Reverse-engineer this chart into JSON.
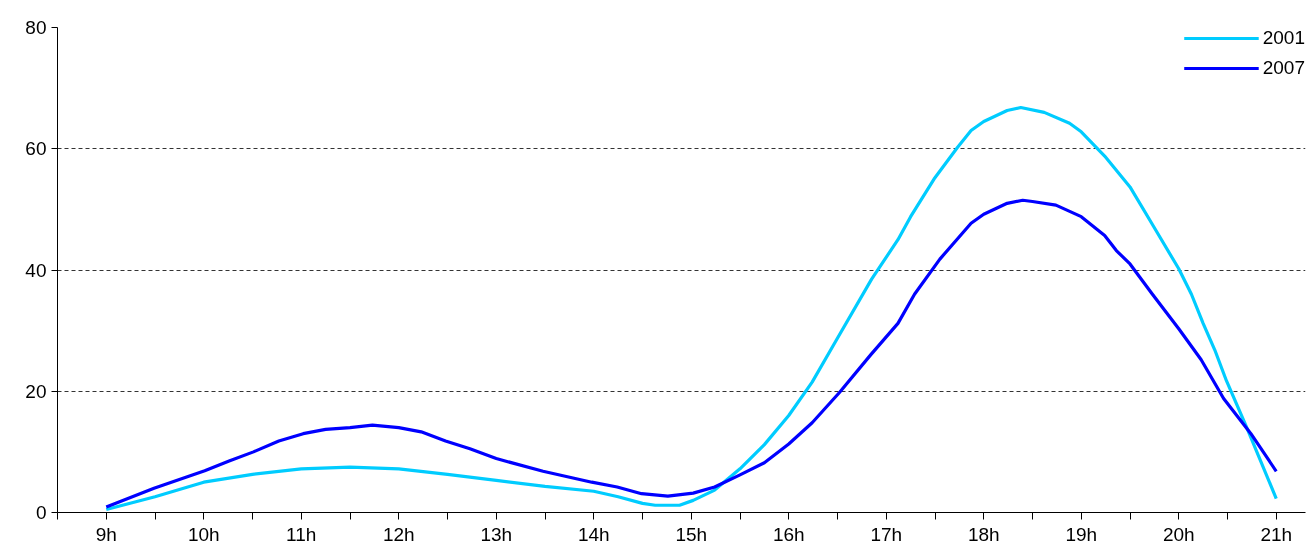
{
  "chart_data": {
    "type": "line",
    "xlim": [
      8.5,
      21.3
    ],
    "ylim": [
      0,
      80
    ],
    "yticks": [
      0,
      20,
      40,
      60,
      80
    ],
    "xticks": [
      {
        "value": 8.5,
        "label": null
      },
      {
        "value": 9,
        "label": "9h"
      },
      {
        "value": 9.5,
        "label": null
      },
      {
        "value": 10,
        "label": "10h"
      },
      {
        "value": 10.5,
        "label": null
      },
      {
        "value": 11,
        "label": "11h"
      },
      {
        "value": 11.5,
        "label": null
      },
      {
        "value": 12,
        "label": "12h"
      },
      {
        "value": 12.5,
        "label": null
      },
      {
        "value": 13,
        "label": "13h"
      },
      {
        "value": 13.5,
        "label": null
      },
      {
        "value": 14,
        "label": "14h"
      },
      {
        "value": 14.5,
        "label": null
      },
      {
        "value": 15,
        "label": "15h"
      },
      {
        "value": 15.5,
        "label": null
      },
      {
        "value": 16,
        "label": "16h"
      },
      {
        "value": 16.5,
        "label": null
      },
      {
        "value": 17,
        "label": "17h"
      },
      {
        "value": 17.5,
        "label": null
      },
      {
        "value": 18,
        "label": "18h"
      },
      {
        "value": 18.5,
        "label": null
      },
      {
        "value": 19,
        "label": "19h"
      },
      {
        "value": 19.5,
        "label": null
      },
      {
        "value": 20,
        "label": "20h"
      },
      {
        "value": 20.5,
        "label": null
      },
      {
        "value": 21,
        "label": "21h"
      }
    ],
    "grid": "y",
    "legend": "top right",
    "line_style": "solid",
    "marker": "none",
    "series": [
      {
        "name": "2001",
        "color": "#00ccff",
        "x": [
          9.0,
          9.5,
          10.0,
          10.5,
          11.0,
          11.5,
          12.0,
          12.5,
          13.0,
          13.5,
          14.0,
          14.25,
          14.5,
          14.63,
          14.88,
          15.02,
          15.24,
          15.5,
          15.75,
          16.0,
          16.24,
          16.48,
          16.85,
          17.12,
          17.25,
          17.49,
          17.73,
          17.87,
          18.0,
          18.24,
          18.38,
          18.62,
          18.88,
          19.0,
          19.24,
          19.5,
          19.73,
          20.0,
          20.13,
          20.25,
          20.37,
          20.49,
          20.69,
          21.0
        ],
        "values": [
          0.5,
          2.6,
          5.0,
          6.3,
          7.2,
          7.5,
          7.2,
          6.3,
          5.3,
          4.3,
          3.5,
          2.6,
          1.5,
          1.2,
          1.2,
          2.0,
          3.7,
          7.2,
          11.2,
          16,
          21.5,
          28.2,
          38.5,
          45,
          48.8,
          55,
          60.2,
          63,
          64.5,
          66.3,
          66.8,
          66,
          64.2,
          62.8,
          58.8,
          53.7,
          47.5,
          40.2,
          36,
          31.2,
          26.8,
          21.7,
          14.3,
          2.3
        ]
      },
      {
        "name": "2007",
        "color": "#0000ff",
        "x": [
          9.0,
          9.49,
          10.01,
          10.26,
          10.51,
          10.77,
          11.02,
          11.25,
          11.5,
          11.73,
          12.0,
          12.23,
          12.48,
          12.73,
          13.0,
          13.48,
          13.98,
          14.24,
          14.49,
          14.76,
          15.02,
          15.24,
          15.5,
          15.75,
          16.0,
          16.24,
          16.52,
          16.84,
          17.12,
          17.29,
          17.55,
          17.87,
          18.0,
          18.24,
          18.4,
          18.5,
          18.74,
          19.0,
          19.24,
          19.36,
          19.5,
          19.73,
          20.0,
          20.23,
          20.46,
          20.74,
          21.0
        ],
        "values": [
          0.9,
          4.0,
          6.9,
          8.5,
          10,
          11.8,
          13,
          13.7,
          14,
          14.4,
          14,
          13.3,
          11.8,
          10.5,
          8.9,
          6.8,
          5,
          4.2,
          3.1,
          2.7,
          3.2,
          4.2,
          6.2,
          8.2,
          11.3,
          14.8,
          19.8,
          26,
          31.2,
          36,
          41.8,
          47.7,
          49.2,
          51,
          51.5,
          51.3,
          50.7,
          48.8,
          45.7,
          43.2,
          41,
          36,
          30.3,
          25.2,
          18.8,
          13,
          6.8
        ]
      }
    ]
  }
}
